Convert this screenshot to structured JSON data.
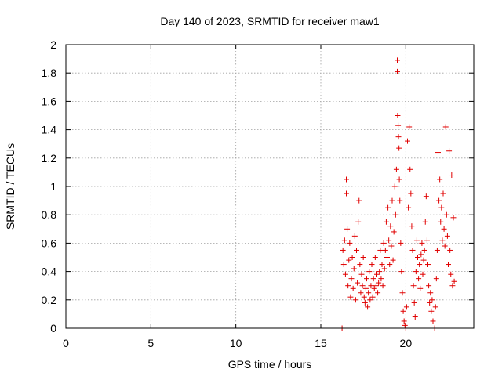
{
  "chart_data": {
    "type": "scatter",
    "title": "Day 140 of 2023, SRMTID for receiver maw1",
    "xlabel": "GPS time / hours",
    "ylabel": "SRMTID / TECUs",
    "xlim": [
      0,
      24
    ],
    "ylim": [
      0,
      2
    ],
    "grid": true,
    "marker": "plus",
    "color": "#e00000",
    "x_ticks": [
      "0",
      "5",
      "10",
      "15",
      "20"
    ],
    "y_ticks": [
      "0",
      "0.2",
      "0.4",
      "0.6",
      "0.8",
      "1",
      "1.2",
      "1.4",
      "1.6",
      "1.8",
      "2"
    ],
    "series": [
      {
        "points": [
          [
            16.25,
            0.0
          ],
          [
            16.3,
            0.55
          ],
          [
            16.35,
            0.45
          ],
          [
            16.4,
            0.62
          ],
          [
            16.45,
            0.38
          ],
          [
            16.5,
            1.05
          ],
          [
            16.5,
            0.95
          ],
          [
            16.55,
            0.7
          ],
          [
            16.6,
            0.3
          ],
          [
            16.65,
            0.48
          ],
          [
            16.7,
            0.6
          ],
          [
            16.75,
            0.22
          ],
          [
            16.8,
            0.35
          ],
          [
            16.85,
            0.5
          ],
          [
            16.9,
            0.28
          ],
          [
            16.95,
            0.42
          ],
          [
            17.0,
            0.65
          ],
          [
            17.05,
            0.2
          ],
          [
            17.1,
            0.55
          ],
          [
            17.15,
            0.32
          ],
          [
            17.2,
            0.75
          ],
          [
            17.25,
            0.9
          ],
          [
            17.3,
            0.45
          ],
          [
            17.35,
            0.25
          ],
          [
            17.4,
            0.38
          ],
          [
            17.45,
            0.3
          ],
          [
            17.5,
            0.5
          ],
          [
            17.55,
            0.22
          ],
          [
            17.6,
            0.18
          ],
          [
            17.65,
            0.28
          ],
          [
            17.7,
            0.35
          ],
          [
            17.75,
            0.15
          ],
          [
            17.8,
            0.25
          ],
          [
            17.85,
            0.4
          ],
          [
            17.9,
            0.2
          ],
          [
            17.95,
            0.3
          ],
          [
            18.0,
            0.45
          ],
          [
            18.05,
            0.22
          ],
          [
            18.1,
            0.35
          ],
          [
            18.15,
            0.28
          ],
          [
            18.2,
            0.5
          ],
          [
            18.25,
            0.3
          ],
          [
            18.3,
            0.38
          ],
          [
            18.35,
            0.25
          ],
          [
            18.4,
            0.32
          ],
          [
            18.45,
            0.4
          ],
          [
            18.5,
            0.55
          ],
          [
            18.55,
            0.35
          ],
          [
            18.6,
            0.45
          ],
          [
            18.65,
            0.3
          ],
          [
            18.7,
            0.6
          ],
          [
            18.75,
            0.42
          ],
          [
            18.8,
            0.55
          ],
          [
            18.85,
            0.75
          ],
          [
            18.9,
            0.5
          ],
          [
            18.95,
            0.85
          ],
          [
            19.0,
            0.62
          ],
          [
            19.05,
            0.45
          ],
          [
            19.1,
            0.72
          ],
          [
            19.15,
            0.58
          ],
          [
            19.2,
            0.9
          ],
          [
            19.25,
            0.48
          ],
          [
            19.3,
            0.68
          ],
          [
            19.35,
            1.0
          ],
          [
            19.4,
            0.8
          ],
          [
            19.45,
            1.12
          ],
          [
            19.5,
            1.89
          ],
          [
            19.5,
            1.81
          ],
          [
            19.52,
            1.5
          ],
          [
            19.55,
            1.43
          ],
          [
            19.57,
            1.35
          ],
          [
            19.6,
            1.27
          ],
          [
            19.62,
            1.05
          ],
          [
            19.65,
            0.9
          ],
          [
            19.7,
            0.6
          ],
          [
            19.75,
            0.4
          ],
          [
            19.8,
            0.25
          ],
          [
            19.85,
            0.12
          ],
          [
            19.9,
            0.05
          ],
          [
            19.95,
            0.02
          ],
          [
            20.0,
            0.0
          ],
          [
            20.05,
            0.15
          ],
          [
            20.1,
            1.32
          ],
          [
            20.15,
            0.85
          ],
          [
            20.2,
            1.42
          ],
          [
            20.25,
            1.12
          ],
          [
            20.3,
            0.95
          ],
          [
            20.35,
            0.72
          ],
          [
            20.4,
            0.55
          ],
          [
            20.45,
            0.3
          ],
          [
            20.5,
            0.18
          ],
          [
            20.55,
            0.08
          ],
          [
            20.6,
            0.4
          ],
          [
            20.65,
            0.62
          ],
          [
            20.7,
            0.5
          ],
          [
            20.75,
            0.35
          ],
          [
            20.8,
            0.45
          ],
          [
            20.85,
            0.28
          ],
          [
            20.9,
            0.52
          ],
          [
            20.95,
            0.6
          ],
          [
            21.0,
            0.38
          ],
          [
            21.05,
            0.48
          ],
          [
            21.1,
            0.55
          ],
          [
            21.15,
            0.75
          ],
          [
            21.2,
            0.93
          ],
          [
            21.25,
            0.62
          ],
          [
            21.3,
            0.45
          ],
          [
            21.35,
            0.3
          ],
          [
            21.4,
            0.18
          ],
          [
            21.45,
            0.25
          ],
          [
            21.5,
            0.12
          ],
          [
            21.55,
            0.2
          ],
          [
            21.6,
            0.05
          ],
          [
            21.7,
            0.0
          ],
          [
            21.75,
            0.15
          ],
          [
            21.8,
            0.35
          ],
          [
            21.85,
            0.55
          ],
          [
            21.9,
            1.24
          ],
          [
            21.95,
            0.9
          ],
          [
            22.0,
            1.05
          ],
          [
            22.05,
            0.75
          ],
          [
            22.1,
            0.85
          ],
          [
            22.15,
            0.62
          ],
          [
            22.2,
            0.95
          ],
          [
            22.25,
            0.7
          ],
          [
            22.3,
            0.58
          ],
          [
            22.35,
            1.42
          ],
          [
            22.4,
            0.8
          ],
          [
            22.45,
            0.65
          ],
          [
            22.5,
            0.45
          ],
          [
            22.55,
            1.25
          ],
          [
            22.6,
            0.55
          ],
          [
            22.65,
            0.38
          ],
          [
            22.7,
            1.08
          ],
          [
            22.75,
            0.3
          ],
          [
            22.8,
            0.78
          ],
          [
            22.85,
            0.33
          ]
        ]
      }
    ]
  }
}
